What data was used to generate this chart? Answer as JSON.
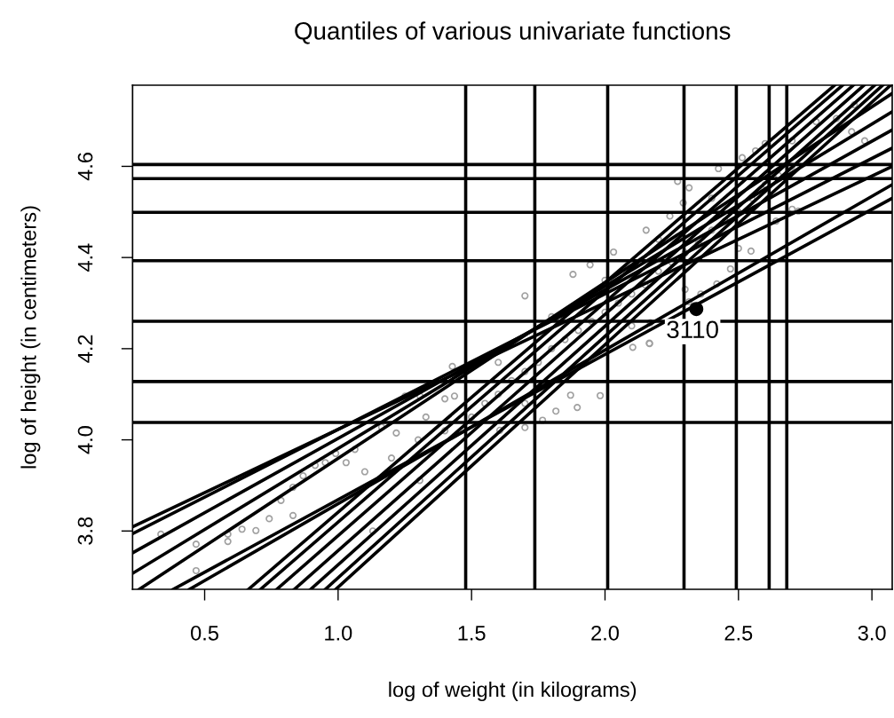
{
  "chart_data": {
    "type": "scatter",
    "title": "Quantiles of various univariate functions",
    "xlabel": "log of weight (in kilograms)",
    "ylabel": "log of height (in centimeters)",
    "xlim": [
      0.23,
      3.076
    ],
    "ylim": [
      3.672,
      4.778
    ],
    "xticks": [
      0.5,
      {
        "value": 1.0,
        "label": "1.0"
      },
      1.5,
      {
        "value": 2.0,
        "label": "2.0"
      },
      2.5,
      {
        "value": 3.0,
        "label": "3.0"
      }
    ],
    "yticks": [
      3.8,
      {
        "value": 4.0,
        "label": "4.0"
      },
      4.2,
      4.4,
      4.6
    ],
    "grid": false,
    "annotations": [
      {
        "text": "3110",
        "x": 2.342,
        "y": 4.287
      }
    ],
    "ref_lines": [
      {
        "axis": "x",
        "value": 1.478,
        "color": "#000000"
      },
      {
        "axis": "x",
        "value": 1.737,
        "color": "#000000"
      },
      {
        "axis": "x",
        "value": 2.01,
        "color": "#000000"
      },
      {
        "axis": "x",
        "value": 2.296,
        "color": "#000000"
      },
      {
        "axis": "x",
        "value": 2.492,
        "color": "#000000"
      },
      {
        "axis": "x",
        "value": 2.615,
        "color": "#000000"
      },
      {
        "axis": "x",
        "value": 2.681,
        "color": "#000000"
      },
      {
        "axis": "y",
        "value": 4.604,
        "color": "#000000"
      },
      {
        "axis": "y",
        "value": 4.573,
        "color": "#000000"
      },
      {
        "axis": "y",
        "value": 4.499,
        "color": "#000000"
      },
      {
        "axis": "y",
        "value": 4.393,
        "color": "#000000"
      },
      {
        "axis": "y",
        "value": 4.26,
        "color": "#000000"
      },
      {
        "axis": "y",
        "value": 4.128,
        "color": "#000000"
      },
      {
        "axis": "y",
        "value": 4.038,
        "color": "#000000"
      }
    ],
    "series": [
      {
        "color": "#a0a0a0",
        "marker": "circle",
        "x": [
          0.336,
          0.468,
          0.468,
          0.587,
          0.587,
          0.64,
          0.692,
          0.742,
          0.786,
          0.831,
          0.831,
          0.869,
          0.914,
          0.952,
          0.991,
          1.03,
          1.063,
          1.13,
          1.163,
          1.218,
          1.251,
          1.307,
          1.329,
          1.428,
          1.436,
          1.306,
          1.7,
          1.88,
          1.944,
          2.032,
          2.154,
          2.243,
          2.293,
          2.315,
          2.272,
          2.425,
          2.514,
          2.564,
          2.6,
          2.701,
          2.791,
          2.867,
          2.934,
          2.973,
          2.924,
          2.724,
          2.701,
          2.641,
          2.547,
          2.47,
          2.419,
          2.359,
          2.315,
          2.166,
          2.104,
          2.17,
          1.982,
          1.896,
          1.816,
          1.766,
          1.7,
          1.606,
          2.167,
          1.871,
          1.5,
          1.55,
          1.6,
          1.65,
          1.7,
          1.75,
          1.8,
          1.85,
          1.9,
          1.95,
          2.0,
          2.05,
          2.1,
          2.15,
          2.2,
          2.25,
          2.3,
          2.35,
          2.4,
          2.45,
          2.5,
          2.55,
          2.6,
          2.65,
          2.7,
          1.2,
          1.3,
          1.4,
          1.1,
          1.6,
          1.8,
          2.0,
          2.2,
          2.4,
          1.4,
          1.7,
          1.9,
          2.1,
          2.3,
          2.5
        ],
        "values": [
          3.793,
          3.771,
          3.713,
          3.793,
          3.777,
          3.804,
          3.801,
          3.827,
          3.867,
          3.896,
          3.834,
          3.921,
          3.944,
          3.95,
          3.97,
          3.95,
          3.979,
          3.8,
          4.028,
          4.015,
          4.096,
          4.096,
          4.05,
          4.161,
          4.096,
          3.911,
          4.316,
          4.363,
          4.384,
          4.412,
          4.46,
          4.491,
          4.52,
          4.553,
          4.567,
          4.595,
          4.619,
          4.634,
          4.65,
          4.656,
          4.698,
          4.705,
          4.735,
          4.656,
          4.676,
          4.502,
          4.506,
          4.48,
          4.414,
          4.375,
          4.342,
          4.32,
          4.303,
          4.212,
          4.203,
          4.257,
          4.097,
          4.071,
          4.063,
          4.043,
          4.027,
          4.021,
          4.211,
          4.098,
          4.05,
          4.08,
          4.1,
          4.13,
          4.15,
          4.17,
          4.2,
          4.22,
          4.24,
          4.26,
          4.28,
          4.3,
          4.32,
          4.34,
          4.37,
          4.39,
          4.41,
          4.43,
          4.46,
          4.48,
          4.5,
          4.53,
          4.56,
          4.58,
          4.6,
          3.96,
          4.0,
          4.02,
          3.93,
          4.17,
          4.27,
          4.35,
          4.44,
          4.53,
          4.09,
          4.08,
          4.16,
          4.25,
          4.33,
          4.42
        ]
      },
      {
        "color": "#000000",
        "marker": "circle",
        "x": [
          2.342
        ],
        "values": [
          4.287
        ]
      },
      {
        "type": "line",
        "color": "#000000",
        "x": [
          0.23,
          3.076
        ],
        "values": [
          3.809,
          4.6
        ]
      },
      {
        "type": "line",
        "color": "#000000",
        "x": [
          0.23,
          3.076
        ],
        "values": [
          3.794,
          4.64
        ]
      },
      {
        "type": "line",
        "color": "#000000",
        "x": [
          0.23,
          3.076
        ],
        "values": [
          3.752,
          4.68
        ]
      },
      {
        "type": "line",
        "color": "#000000",
        "x": [
          0.23,
          3.076
        ],
        "values": [
          3.707,
          4.72
        ]
      },
      {
        "type": "line",
        "color": "#000000",
        "x": [
          0.255,
          3.076
        ],
        "values": [
          3.672,
          4.76
        ]
      },
      {
        "type": "line",
        "color": "#000000",
        "x": [
          0.382,
          3.076
        ],
        "values": [
          3.672,
          4.53
        ]
      },
      {
        "type": "line",
        "color": "#000000",
        "x": [
          0.443,
          3.076
        ],
        "values": [
          3.672,
          4.56
        ]
      },
      {
        "type": "line",
        "color": "#000000",
        "x": [
          0.664,
          2.86
        ],
        "values": [
          3.672,
          4.778
        ]
      },
      {
        "type": "line",
        "color": "#000000",
        "x": [
          0.709,
          2.89
        ],
        "values": [
          3.672,
          4.778
        ]
      },
      {
        "type": "line",
        "color": "#000000",
        "x": [
          0.77,
          2.93
        ],
        "values": [
          3.672,
          4.778
        ]
      },
      {
        "type": "line",
        "color": "#000000",
        "x": [
          0.836,
          2.97
        ],
        "values": [
          3.672,
          4.778
        ]
      },
      {
        "type": "line",
        "color": "#000000",
        "x": [
          0.897,
          3.01
        ],
        "values": [
          3.672,
          4.778
        ]
      },
      {
        "type": "line",
        "color": "#000000",
        "x": [
          0.952,
          3.04
        ],
        "values": [
          3.672,
          4.778
        ]
      },
      {
        "type": "line",
        "color": "#000000",
        "x": [
          0.991,
          3.07
        ],
        "values": [
          3.672,
          4.778
        ]
      }
    ]
  }
}
